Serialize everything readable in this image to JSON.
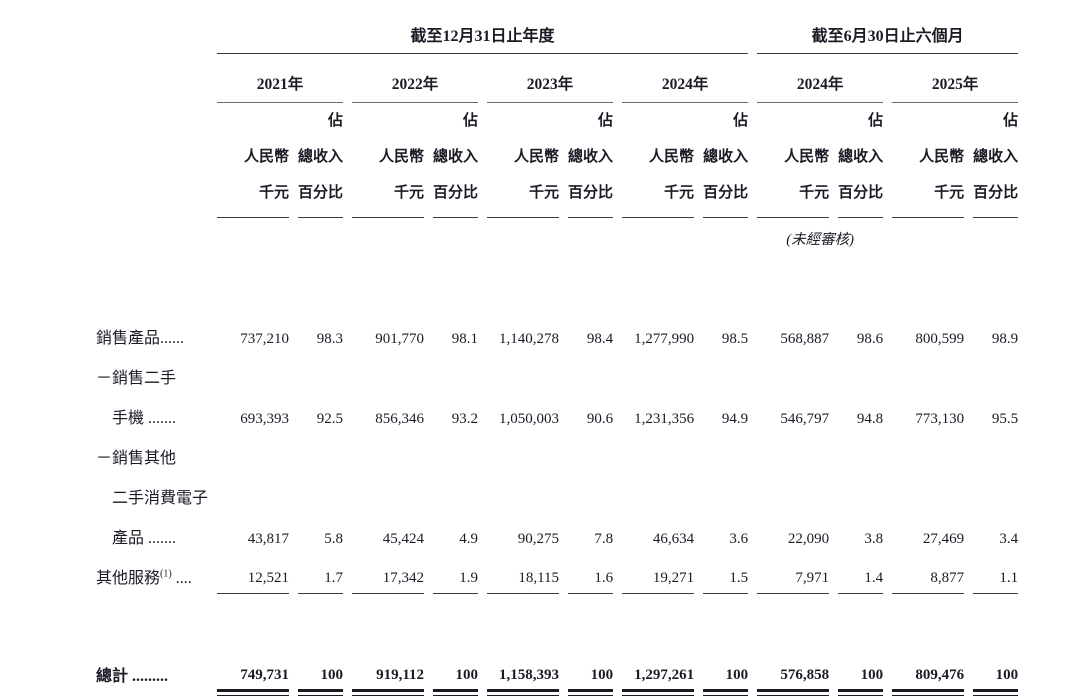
{
  "page": {
    "background": "#ffffff",
    "text_color": "#1b1b26"
  },
  "table": {
    "period_groups": [
      {
        "label": "截至12月31日止年度"
      },
      {
        "label": "截至6月30日止六個月"
      }
    ],
    "years": [
      "2021年",
      "2022年",
      "2023年",
      "2024年",
      "2024年",
      "2025年"
    ],
    "subheader": {
      "rmb_line1": "人民幣",
      "rmb_line2": "千元",
      "pct_line1": "佔",
      "pct_line2": "總收入",
      "pct_line3": "百分比"
    },
    "unaudited_note": "(未經審核)",
    "rows": [
      {
        "label": "銷售產品......",
        "values": [
          "737,210",
          "98.3",
          "901,770",
          "98.1",
          "1,140,278",
          "98.4",
          "1,277,990",
          "98.5",
          "568,887",
          "98.6",
          "800,599",
          "98.9"
        ]
      },
      {
        "label": "－銷售二手"
      },
      {
        "label": "手機 .......",
        "values": [
          "693,393",
          "92.5",
          "856,346",
          "93.2",
          "1,050,003",
          "90.6",
          "1,231,356",
          "94.9",
          "546,797",
          "94.8",
          "773,130",
          "95.5"
        ]
      },
      {
        "label": "－銷售其他"
      },
      {
        "label": "二手消費電子"
      },
      {
        "label": "產品 .......",
        "values": [
          "43,817",
          "5.8",
          "45,424",
          "4.9",
          "90,275",
          "7.8",
          "46,634",
          "3.6",
          "22,090",
          "3.8",
          "27,469",
          "3.4"
        ]
      },
      {
        "label": "其他服務",
        "footnote": "(1)",
        "label_dots": " ....",
        "values": [
          "12,521",
          "1.7",
          "17,342",
          "1.9",
          "18,115",
          "1.6",
          "19,271",
          "1.5",
          "7,971",
          "1.4",
          "8,877",
          "1.1"
        ]
      }
    ],
    "total_row": {
      "label": "總計 .........",
      "values": [
        "749,731",
        "100",
        "919,112",
        "100",
        "1,158,393",
        "100",
        "1,297,261",
        "100",
        "576,858",
        "100",
        "809,476",
        "100"
      ]
    }
  }
}
